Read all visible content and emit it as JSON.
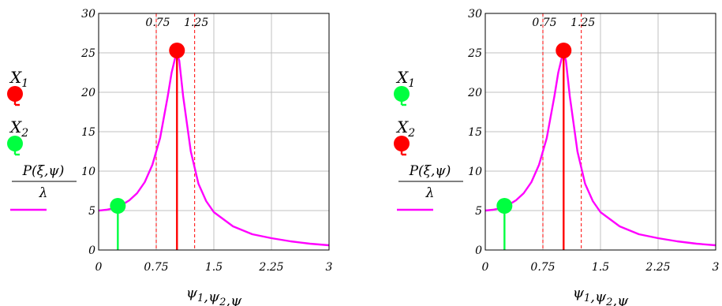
{
  "chart_data": [
    {
      "type": "line",
      "xlabel": "ψ1,ψ2,ψ",
      "xlabel_parts": [
        {
          "t": "ψ",
          "sub": "1"
        },
        {
          "t": ",ψ",
          "sub": "2"
        },
        {
          "t": ",ψ",
          "sub": ""
        }
      ],
      "xlim": [
        0,
        3
      ],
      "ylim": [
        0,
        30
      ],
      "grid": true,
      "x_ticks": [
        0,
        0.75,
        1.5,
        2.25,
        3
      ],
      "x_tick_labels": [
        "0",
        "0.75",
        "1.5",
        "2.25",
        "3"
      ],
      "y_ticks": [
        0,
        5,
        10,
        15,
        20,
        25,
        30
      ],
      "y_tick_labels": [
        "0",
        "5",
        "10",
        "15",
        "20",
        "25",
        "30"
      ],
      "vlines": [
        {
          "x": 0.75,
          "label": "0.75",
          "color": "#ff0000",
          "style": "dashed"
        },
        {
          "x": 1.25,
          "label": "1.25",
          "color": "#ff0000",
          "style": "dashed"
        }
      ],
      "legend": [
        {
          "symbol": "X",
          "sub": "1",
          "marker_color": "#ff0000"
        },
        {
          "symbol": "X",
          "sub": "2",
          "marker_color": "#00ff40"
        },
        {
          "numerator": "P(ξ,ψ)",
          "denominator": "λ",
          "line_color": "#ff00ff"
        }
      ],
      "series": [
        {
          "id": "curve",
          "color": "#ff00ff",
          "kind": "line",
          "x": [
            0,
            0.1,
            0.2,
            0.3,
            0.4,
            0.5,
            0.6,
            0.7,
            0.8,
            0.9,
            0.95,
            1.0,
            1.02,
            1.05,
            1.1,
            1.2,
            1.3,
            1.4,
            1.5,
            1.75,
            2.0,
            2.25,
            2.5,
            2.75,
            3.0
          ],
          "y": [
            5.0,
            5.1,
            5.3,
            5.7,
            6.3,
            7.2,
            8.6,
            10.8,
            14.2,
            19.5,
            22.5,
            24.5,
            25.0,
            24.0,
            19.5,
            12.5,
            8.4,
            6.2,
            4.8,
            3.0,
            2.0,
            1.5,
            1.1,
            0.8,
            0.6
          ]
        },
        {
          "id": "X1",
          "color": "#ff0000",
          "kind": "stem",
          "x": [
            1.02
          ],
          "y": [
            25.3
          ]
        },
        {
          "id": "X2",
          "color": "#00ff40",
          "kind": "stem",
          "x": [
            0.25
          ],
          "y": [
            5.6
          ]
        }
      ]
    },
    {
      "type": "line",
      "xlabel": "ψ1,ψ2,ψ",
      "xlabel_parts": [
        {
          "t": "ψ",
          "sub": "1"
        },
        {
          "t": ",ψ",
          "sub": "2"
        },
        {
          "t": ",ψ",
          "sub": ""
        }
      ],
      "xlim": [
        0,
        3
      ],
      "ylim": [
        0,
        30
      ],
      "grid": true,
      "x_ticks": [
        0,
        0.75,
        1.5,
        2.25,
        3
      ],
      "x_tick_labels": [
        "0",
        "0.75",
        "1.5",
        "2.25",
        "3"
      ],
      "y_ticks": [
        0,
        5,
        10,
        15,
        20,
        25,
        30
      ],
      "y_tick_labels": [
        "0",
        "5",
        "10",
        "15",
        "20",
        "25",
        "30"
      ],
      "vlines": [
        {
          "x": 0.75,
          "label": "0.75",
          "color": "#ff0000",
          "style": "dashed"
        },
        {
          "x": 1.25,
          "label": "1.25",
          "color": "#ff0000",
          "style": "dashed"
        }
      ],
      "legend": [
        {
          "symbol": "X",
          "sub": "1",
          "marker_color": "#00ff40"
        },
        {
          "symbol": "X",
          "sub": "2",
          "marker_color": "#ff0000"
        },
        {
          "numerator": "P(ξ,ψ)",
          "denominator": "λ",
          "line_color": "#ff00ff"
        }
      ],
      "series": [
        {
          "id": "curve",
          "color": "#ff00ff",
          "kind": "line",
          "x": [
            0,
            0.1,
            0.2,
            0.3,
            0.4,
            0.5,
            0.6,
            0.7,
            0.8,
            0.9,
            0.95,
            1.0,
            1.02,
            1.05,
            1.1,
            1.2,
            1.3,
            1.4,
            1.5,
            1.75,
            2.0,
            2.25,
            2.5,
            2.75,
            3.0
          ],
          "y": [
            5.0,
            5.1,
            5.3,
            5.7,
            6.3,
            7.2,
            8.6,
            10.8,
            14.2,
            19.5,
            22.5,
            24.5,
            25.0,
            24.0,
            19.5,
            12.5,
            8.4,
            6.2,
            4.8,
            3.0,
            2.0,
            1.5,
            1.1,
            0.8,
            0.6
          ]
        },
        {
          "id": "X1",
          "color": "#00ff40",
          "kind": "stem",
          "x": [
            0.25
          ],
          "y": [
            5.6
          ]
        },
        {
          "id": "X2",
          "color": "#ff0000",
          "kind": "stem",
          "x": [
            1.02
          ],
          "y": [
            25.3
          ]
        }
      ]
    }
  ]
}
